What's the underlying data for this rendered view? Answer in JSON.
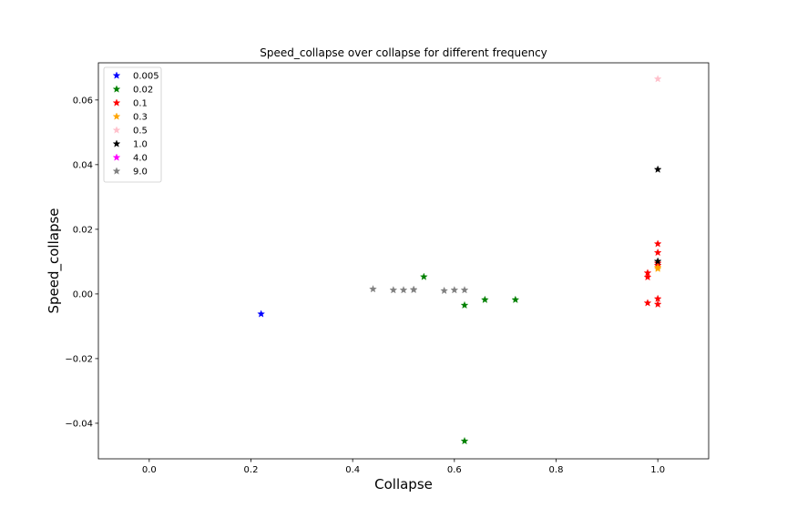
{
  "chart_data": {
    "type": "scatter",
    "title": "Speed_collapse over collapse for different frequency",
    "xlabel": "Collapse",
    "ylabel": "Speed_collapse",
    "xlim": [
      -0.1,
      1.1
    ],
    "ylim": [
      -0.051,
      0.0715
    ],
    "x_ticks": [
      0.0,
      0.2,
      0.4,
      0.6,
      0.8,
      1.0
    ],
    "x_tick_labels": [
      "0.0",
      "0.2",
      "0.4",
      "0.6",
      "0.8",
      "1.0"
    ],
    "y_ticks": [
      -0.04,
      -0.02,
      0.0,
      0.02,
      0.04,
      0.06
    ],
    "y_tick_labels": [
      "−0.04",
      "−0.02",
      "0.00",
      "0.02",
      "0.04",
      "0.06"
    ],
    "grid": false,
    "legend_position": "top-left",
    "marker": "star",
    "series": [
      {
        "name": "0.005",
        "color": "#0000ff",
        "points": [
          [
            0.22,
            -0.0062
          ]
        ]
      },
      {
        "name": "0.02",
        "color": "#008000",
        "points": [
          [
            0.54,
            0.0053
          ],
          [
            0.62,
            -0.0035
          ],
          [
            0.66,
            -0.0018
          ],
          [
            0.72,
            -0.0018
          ],
          [
            0.62,
            -0.0455
          ]
        ]
      },
      {
        "name": "0.1",
        "color": "#ff0000",
        "points": [
          [
            0.98,
            0.0065
          ],
          [
            0.98,
            0.0052
          ],
          [
            0.98,
            -0.0028
          ],
          [
            1.0,
            0.0155
          ],
          [
            1.0,
            0.0128
          ],
          [
            1.0,
            0.0095
          ],
          [
            1.0,
            0.0088
          ],
          [
            1.0,
            -0.0015
          ],
          [
            1.0,
            -0.0032
          ]
        ]
      },
      {
        "name": "0.3",
        "color": "#ffa500",
        "points": [
          [
            1.0,
            0.0082
          ],
          [
            1.0,
            0.0078
          ]
        ]
      },
      {
        "name": "0.5",
        "color": "#ffc0cb",
        "points": [
          [
            1.0,
            0.0665
          ]
        ]
      },
      {
        "name": "1.0",
        "color": "#000000",
        "points": [
          [
            1.0,
            0.0385
          ],
          [
            1.0,
            0.0101
          ]
        ]
      },
      {
        "name": "4.0",
        "color": "#ff00ff",
        "points": []
      },
      {
        "name": "9.0",
        "color": "#808080",
        "points": [
          [
            0.44,
            0.0015
          ],
          [
            0.48,
            0.0012
          ],
          [
            0.5,
            0.0012
          ],
          [
            0.52,
            0.0013
          ],
          [
            0.52,
            0.0013
          ],
          [
            0.58,
            0.001
          ],
          [
            0.6,
            0.0012
          ],
          [
            0.62,
            0.0012
          ]
        ]
      }
    ]
  }
}
